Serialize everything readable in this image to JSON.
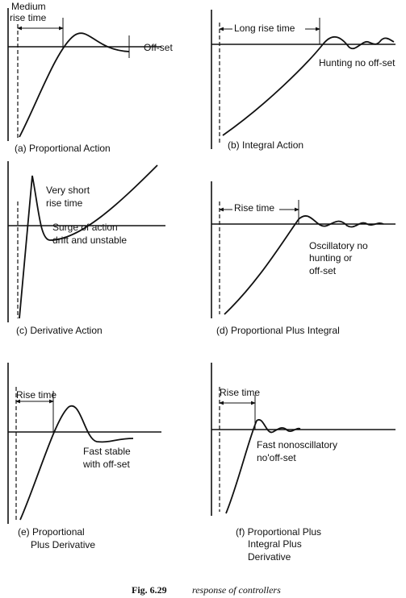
{
  "panels": [
    {
      "id": "a",
      "annotations": [
        "Medium",
        "rise time",
        "Off-set"
      ],
      "caption": [
        "(a) Proportional Action"
      ]
    },
    {
      "id": "b",
      "annotations": [
        "Long rise time",
        "Hunting no off-set"
      ],
      "caption": [
        "(b) Integral Action"
      ]
    },
    {
      "id": "c",
      "annotations": [
        "Very short",
        "rise time",
        "Surge of action",
        "drift and unstable"
      ],
      "caption": [
        "(c) Derivative Action"
      ]
    },
    {
      "id": "d",
      "annotations": [
        "Rise time",
        "Oscillatory no",
        "hunting or",
        "off-set"
      ],
      "caption": [
        "(d) Proportional Plus Integral"
      ]
    },
    {
      "id": "e",
      "annotations": [
        "Rise time",
        "Fast stable",
        "with off-set"
      ],
      "caption": [
        "(e) Proportional",
        "Plus Derivative"
      ]
    },
    {
      "id": "f",
      "annotations": [
        "Rise time",
        "Fast nonoscillatory",
        "no'off-set"
      ],
      "caption": [
        "(f) Proportional Plus",
        "Integral Plus",
        "Derivative"
      ]
    }
  ],
  "figure": {
    "number": "Fig. 6.29",
    "title": "response of controllers"
  }
}
